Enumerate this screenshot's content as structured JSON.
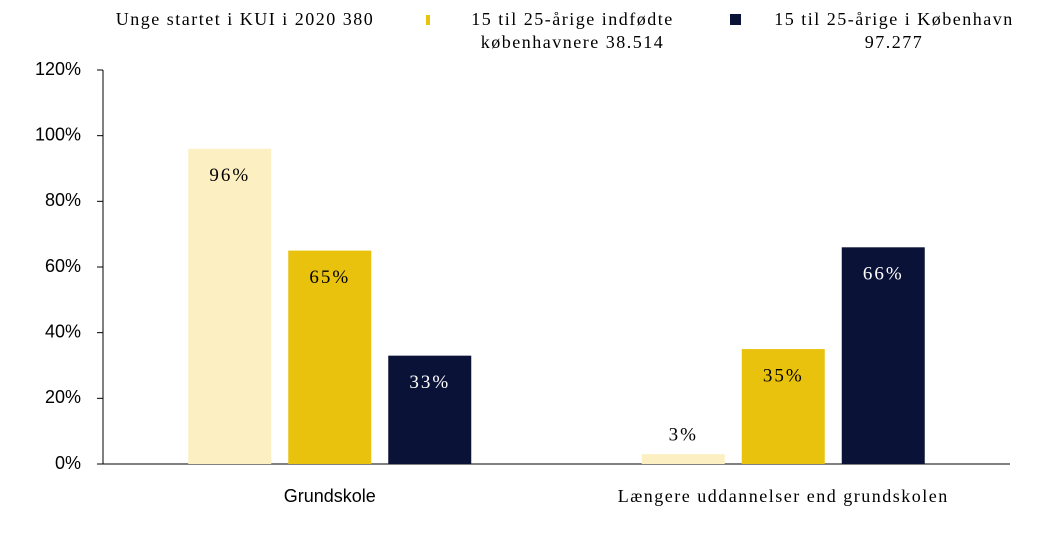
{
  "chart_data": {
    "type": "bar",
    "categories": [
      "Grundskole",
      "Længere uddannelser end grundskolen"
    ],
    "series": [
      {
        "name": "Unge startet i KUI i 2020 380",
        "color": "#fcefc2",
        "values": [
          96,
          3
        ],
        "value_labels": [
          "96%",
          "3%"
        ]
      },
      {
        "name": "15 til 25-årige indfødte københavnere 38.514",
        "color": "#e8c20c",
        "values": [
          65,
          35
        ],
        "value_labels": [
          "65%",
          "35%"
        ]
      },
      {
        "name": "15 til 25-årige i København 97.277",
        "color": "#0b1238",
        "values": [
          33,
          66
        ],
        "value_labels": [
          "33%",
          "66%"
        ]
      }
    ],
    "ylim": [
      0,
      120
    ],
    "yticks": [
      {
        "value": 0,
        "label": "0%"
      },
      {
        "value": 20,
        "label": "20%"
      },
      {
        "value": 40,
        "label": "40%"
      },
      {
        "value": 60,
        "label": "60%"
      },
      {
        "value": 80,
        "label": "80%"
      },
      {
        "value": 100,
        "label": "100%"
      },
      {
        "value": 120,
        "label": "120%"
      }
    ],
    "legend": "top"
  }
}
